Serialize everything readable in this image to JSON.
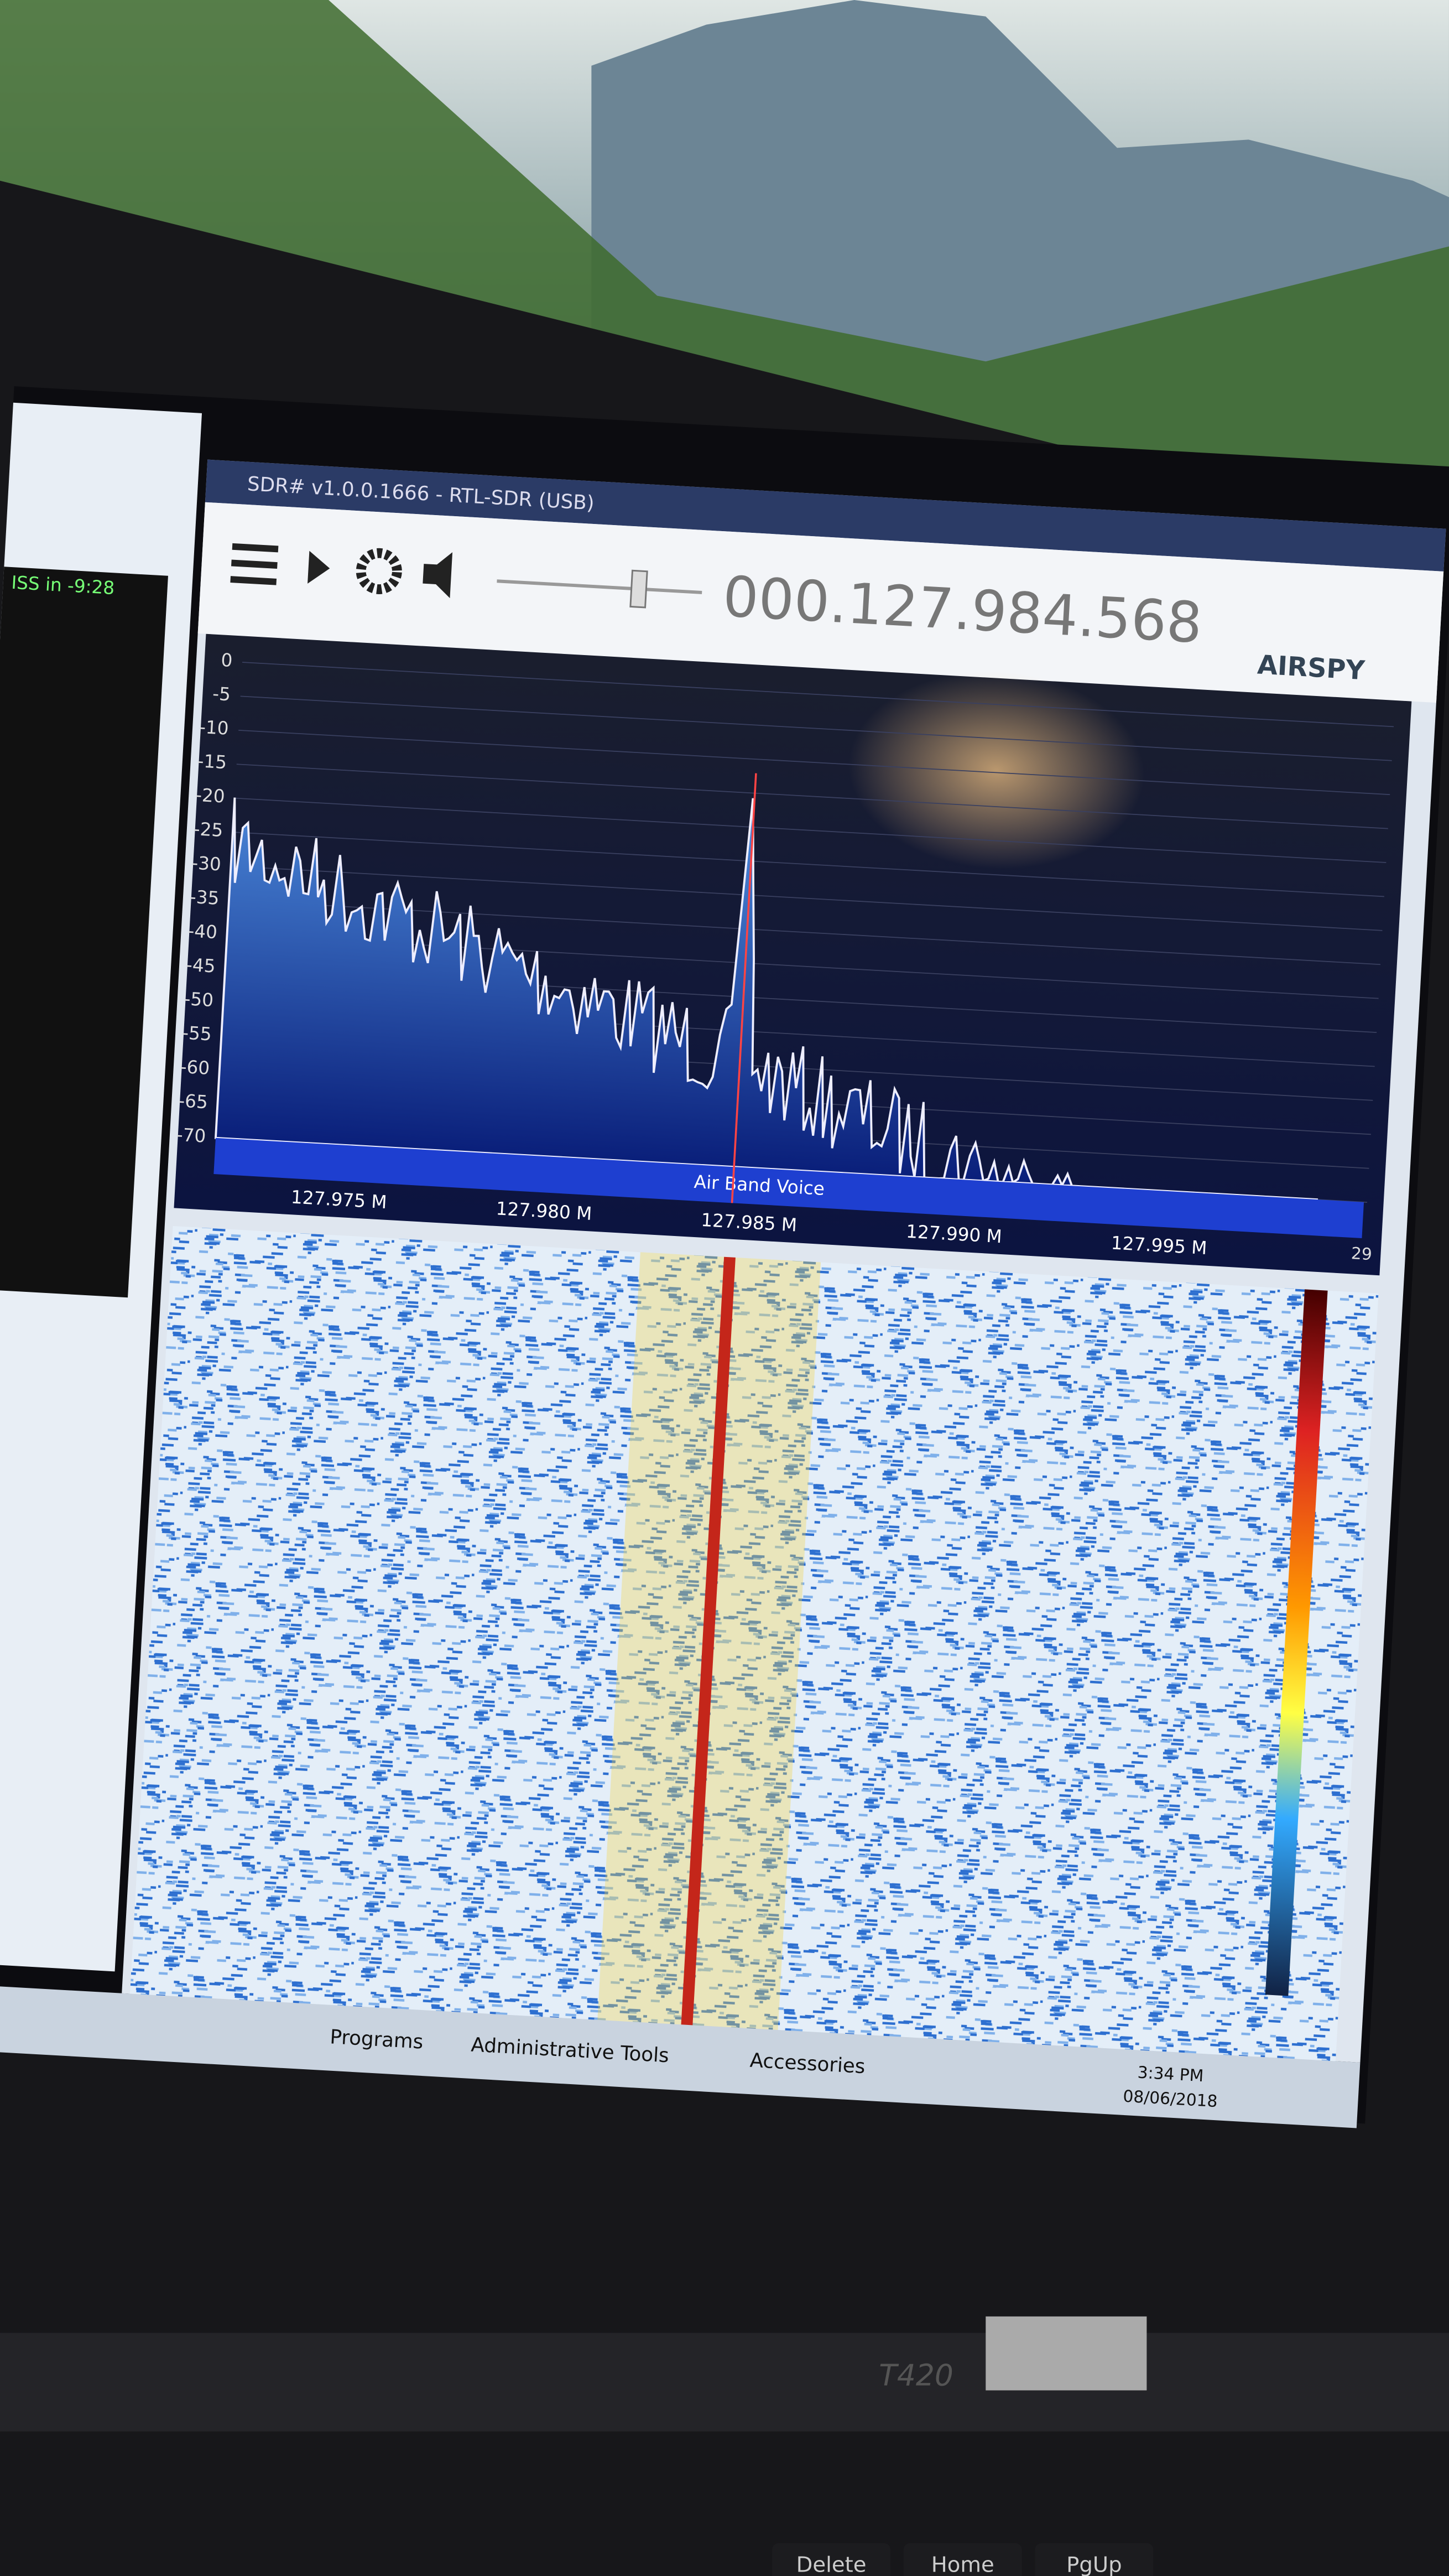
{
  "window": {
    "title": "SDR# v1.0.0.1666 - RTL-SDR (USB)",
    "frequency": "000.127.984.568",
    "logo": "AIRSPY"
  },
  "spectrum": {
    "y_labels": [
      0,
      -5,
      -10,
      -15,
      -20,
      -25,
      -30,
      -35,
      -40,
      -45,
      -50,
      -55,
      -60,
      -65,
      -70
    ],
    "x_labels": [
      "127.975 M",
      "127.980 M",
      "127.985 M",
      "127.990 M",
      "127.995 M"
    ],
    "band_label": "Air Band Voice",
    "zoom": "29"
  },
  "side_window": {
    "status": "ISS in -9:28"
  },
  "taskbar": {
    "items": [
      "Programs",
      "Administrative Tools",
      "Accessories"
    ],
    "time": "3:34 PM",
    "date": "08/06/2018"
  },
  "laptop": {
    "model": "T420",
    "keys": [
      "Delete",
      "Home",
      "PgUp"
    ]
  }
}
